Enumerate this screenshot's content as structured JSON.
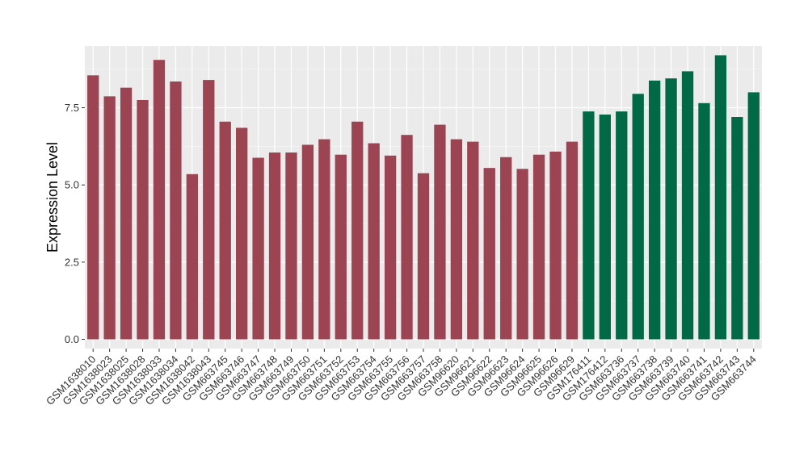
{
  "chart_data": {
    "type": "bar",
    "title": "",
    "xlabel": "",
    "ylabel": "Expression Level",
    "ylim": [
      -0.3,
      9.5
    ],
    "yticks": [
      0.0,
      2.5,
      5.0,
      7.5
    ],
    "ytick_labels": [
      "0.0",
      "2.5",
      "5.0",
      "7.5"
    ],
    "grid": true,
    "legend": "none",
    "background_color": "#EBEBEB",
    "categories": [
      "GSM1638010",
      "GSM1638023",
      "GSM1638025",
      "GSM1638028",
      "GSM1638033",
      "GSM1638034",
      "GSM1638042",
      "GSM1638043",
      "GSM663745",
      "GSM663746",
      "GSM663747",
      "GSM663748",
      "GSM663749",
      "GSM663750",
      "GSM663751",
      "GSM663752",
      "GSM663753",
      "GSM663754",
      "GSM663755",
      "GSM663756",
      "GSM663757",
      "GSM663758",
      "GSM96620",
      "GSM96621",
      "GSM96622",
      "GSM96623",
      "GSM96624",
      "GSM96625",
      "GSM96626",
      "GSM96629",
      "GSM176411",
      "GSM176412",
      "GSM663736",
      "GSM663737",
      "GSM663738",
      "GSM663739",
      "GSM663740",
      "GSM663741",
      "GSM663742",
      "GSM663743",
      "GSM663744"
    ],
    "values": [
      8.55,
      7.87,
      8.15,
      7.75,
      9.05,
      8.35,
      5.35,
      8.4,
      7.05,
      6.85,
      5.88,
      6.05,
      6.05,
      6.3,
      6.48,
      5.98,
      7.05,
      6.35,
      5.95,
      6.62,
      5.38,
      6.95,
      6.48,
      6.4,
      5.55,
      5.9,
      5.52,
      5.98,
      6.08,
      6.4,
      7.38,
      7.28,
      7.38,
      7.95,
      8.38,
      8.45,
      8.68,
      7.65,
      9.2,
      7.2,
      8.0
    ],
    "colors": [
      "#9D4452",
      "#9D4452",
      "#9D4452",
      "#9D4452",
      "#9D4452",
      "#9D4452",
      "#9D4452",
      "#9D4452",
      "#9D4452",
      "#9D4452",
      "#9D4452",
      "#9D4452",
      "#9D4452",
      "#9D4452",
      "#9D4452",
      "#9D4452",
      "#9D4452",
      "#9D4452",
      "#9D4452",
      "#9D4452",
      "#9D4452",
      "#9D4452",
      "#9D4452",
      "#9D4452",
      "#9D4452",
      "#9D4452",
      "#9D4452",
      "#9D4452",
      "#9D4452",
      "#9D4452",
      "#006A46",
      "#006A46",
      "#006A46",
      "#006A46",
      "#006A46",
      "#006A46",
      "#006A46",
      "#006A46",
      "#006A46",
      "#006A46",
      "#006A46"
    ]
  }
}
